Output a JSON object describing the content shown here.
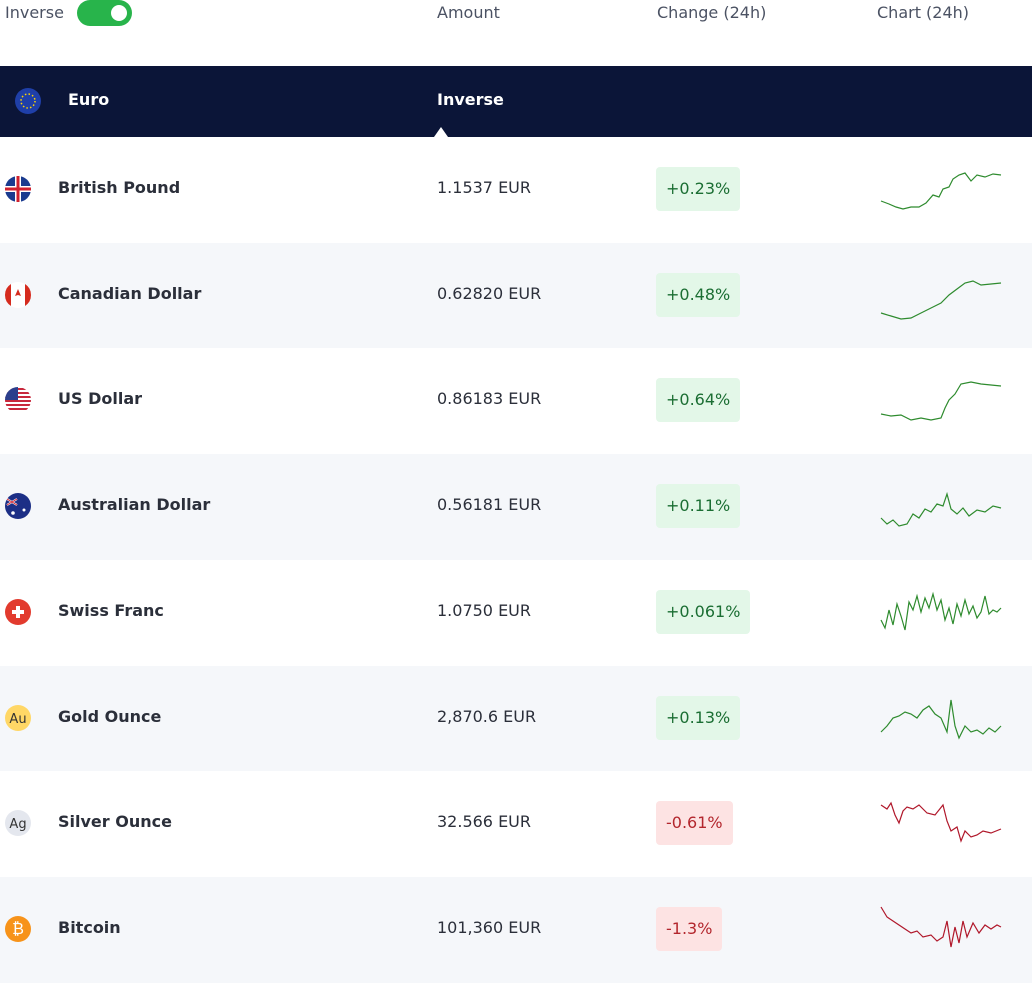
{
  "header": {
    "toggle_label": "Inverse",
    "columns": [
      "Amount",
      "Change (24h)",
      "Chart (24h)"
    ]
  },
  "base": {
    "name": "Euro",
    "label": "Inverse"
  },
  "rows": [
    {
      "name": "British Pound",
      "amount": "1.1537 EUR",
      "change": "+0.23%"
    },
    {
      "name": "Canadian Dollar",
      "amount": "0.62820 EUR",
      "change": "+0.48%"
    },
    {
      "name": "US Dollar",
      "amount": "0.86183 EUR",
      "change": "+0.64%"
    },
    {
      "name": "Australian Dollar",
      "amount": "0.56181 EUR",
      "change": "+0.11%"
    },
    {
      "name": "Swiss Franc",
      "amount": "1.0750 EUR",
      "change": "+0.061%"
    },
    {
      "name": "Gold Ounce",
      "icon": "Au",
      "amount": "2,870.6 EUR",
      "change": "+0.13%"
    },
    {
      "name": "Silver Ounce",
      "icon": "Ag",
      "amount": "32.566 EUR",
      "change": "-0.61%"
    },
    {
      "name": "Bitcoin",
      "icon": "₿",
      "amount": "101,360 EUR",
      "change": "-1.3%"
    }
  ]
}
